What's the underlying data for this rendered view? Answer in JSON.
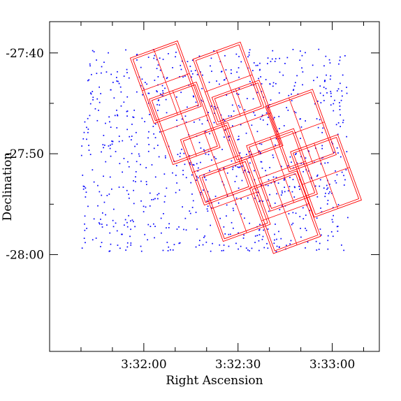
{
  "chart_data": {
    "type": "scatter",
    "title": "",
    "xlabel": "Right Ascension",
    "ylabel": "Declination",
    "xaxis": {
      "unit": "seconds of RA after 3h32m00s",
      "inverted": false,
      "range": [
        -30,
        75
      ],
      "major_ticks": [
        {
          "value": 0,
          "label": "3:32:00"
        },
        {
          "value": 30,
          "label": "3:32:30"
        },
        {
          "value": 60,
          "label": "3:33:00"
        }
      ],
      "minor_ticks": [
        -20,
        -10,
        10,
        20,
        40,
        50,
        70
      ]
    },
    "yaxis": {
      "unit": "arcminutes of declination",
      "range": [
        -28.16,
        -27.615
      ],
      "major_ticks": [
        {
          "value": -27.6667,
          "label": "-27:40"
        },
        {
          "value": -27.8333,
          "label": "-27:50"
        },
        {
          "value": -28.0,
          "label": "-28:00"
        }
      ],
      "minor_ticks": [
        -27.75,
        -27.9167
      ]
    },
    "grid": false,
    "legend": "none",
    "colors": {
      "points": "#0000ff",
      "footprints": "#ff0000",
      "axes": "#000000"
    },
    "series": [
      {
        "kind": "points",
        "color": "#0000ff",
        "count": 900,
        "extent_ra": [
          -20,
          65
        ],
        "extent_dec": [
          -27.995,
          -27.66
        ]
      },
      {
        "kind": "footprints",
        "color": "#ff0000",
        "tiles": [
          {
            "center_ra": 7,
            "center_dec": -27.715,
            "width_ra": 16,
            "height_dec": 0.115,
            "rotation_deg": -20
          },
          {
            "center_ra": 27,
            "center_dec": -27.717,
            "width_ra": 16,
            "height_dec": 0.115,
            "rotation_deg": -20
          },
          {
            "center_ra": 13,
            "center_dec": -27.783,
            "width_ra": 16,
            "height_dec": 0.115,
            "rotation_deg": -20
          },
          {
            "center_ra": 33,
            "center_dec": -27.78,
            "width_ra": 16,
            "height_dec": 0.115,
            "rotation_deg": -20
          },
          {
            "center_ra": 50,
            "center_dec": -27.795,
            "width_ra": 16,
            "height_dec": 0.115,
            "rotation_deg": -20
          },
          {
            "center_ra": 23,
            "center_dec": -27.85,
            "width_ra": 16,
            "height_dec": 0.115,
            "rotation_deg": -20
          },
          {
            "center_ra": 44,
            "center_dec": -27.86,
            "width_ra": 16,
            "height_dec": 0.115,
            "rotation_deg": -20
          },
          {
            "center_ra": 58,
            "center_dec": -27.87,
            "width_ra": 16,
            "height_dec": 0.115,
            "rotation_deg": -20
          },
          {
            "center_ra": 29,
            "center_dec": -27.91,
            "width_ra": 16,
            "height_dec": 0.115,
            "rotation_deg": -20
          },
          {
            "center_ra": 45,
            "center_dec": -27.93,
            "width_ra": 16,
            "height_dec": 0.115,
            "rotation_deg": -20
          }
        ]
      }
    ]
  }
}
